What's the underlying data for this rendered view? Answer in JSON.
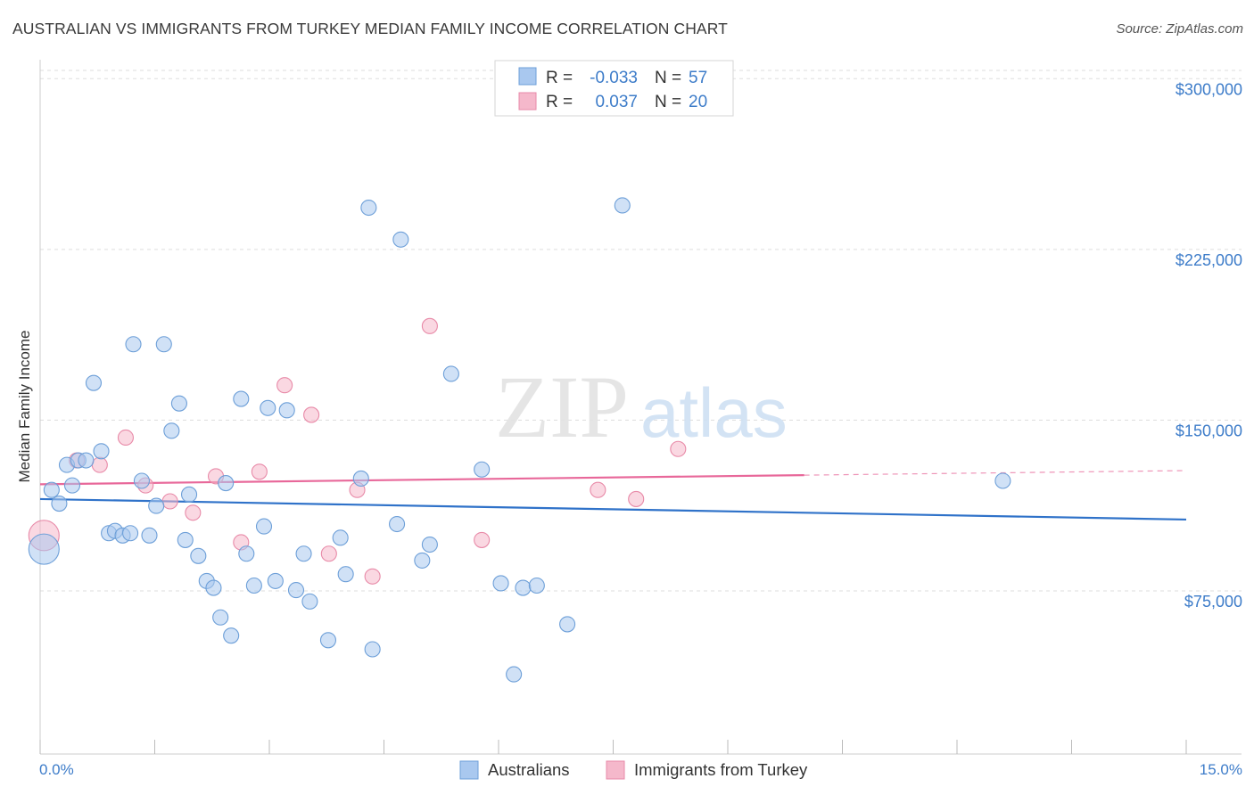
{
  "header": {
    "title": "AUSTRALIAN VS IMMIGRANTS FROM TURKEY MEDIAN FAMILY INCOME CORRELATION CHART",
    "source": "Source: ZipAtlas.com"
  },
  "watermark": {
    "zip": "ZIP",
    "atlas": "atlas"
  },
  "legend": {
    "rows": [
      {
        "r_label": "R =",
        "r_value": "-0.033",
        "n_label": "N =",
        "n_value": "57",
        "color": "#a9c8ef"
      },
      {
        "r_label": "R =",
        "r_value": "0.037",
        "n_label": "N =",
        "n_value": "20",
        "color": "#f5b8cb"
      }
    ]
  },
  "bottom_legend": [
    {
      "label": "Australians",
      "color": "#a9c8ef"
    },
    {
      "label": "Immigrants from Turkey",
      "color": "#f5b8cb"
    }
  ],
  "colors": {
    "blue_fill": "#a9c8ef",
    "blue_stroke": "#6d9fd8",
    "blue_line": "#2f72c9",
    "pink_fill": "#f5b8cb",
    "pink_stroke": "#e88aa8",
    "pink_line": "#e8689a",
    "axis_text": "#3d7cc9",
    "grid": "#dddddd"
  },
  "chart_data": {
    "type": "scatter",
    "title": "AUSTRALIAN VS IMMIGRANTS FROM TURKEY MEDIAN FAMILY INCOME CORRELATION CHART",
    "xlabel": "",
    "ylabel": "Median Family Income",
    "xlim": [
      0,
      15
    ],
    "ylim": [
      10000,
      315000
    ],
    "x_tick_labels": [
      "0.0%",
      "15.0%"
    ],
    "y_ticks": [
      {
        "value": 75000,
        "label": "$75,000"
      },
      {
        "value": 150000,
        "label": "$150,000"
      },
      {
        "value": 225000,
        "label": "$225,000"
      },
      {
        "value": 300000,
        "label": "$300,000"
      }
    ],
    "grid": true,
    "series": [
      {
        "name": "Australians",
        "R": -0.033,
        "N": 57,
        "trend": {
          "x": [
            0.0,
            15.0
          ],
          "y": [
            122000,
            113000
          ],
          "dashed_from": null
        },
        "points": [
          {
            "x": 0.05,
            "y": 100000,
            "big": true
          },
          {
            "x": 0.15,
            "y": 126000
          },
          {
            "x": 0.25,
            "y": 120000
          },
          {
            "x": 0.35,
            "y": 137000
          },
          {
            "x": 0.42,
            "y": 128000
          },
          {
            "x": 0.5,
            "y": 139000
          },
          {
            "x": 0.6,
            "y": 139000
          },
          {
            "x": 0.7,
            "y": 173000
          },
          {
            "x": 0.8,
            "y": 143000
          },
          {
            "x": 0.9,
            "y": 107000
          },
          {
            "x": 0.98,
            "y": 108000
          },
          {
            "x": 1.08,
            "y": 106000
          },
          {
            "x": 1.18,
            "y": 107000
          },
          {
            "x": 1.22,
            "y": 190000
          },
          {
            "x": 1.33,
            "y": 130000
          },
          {
            "x": 1.43,
            "y": 106000
          },
          {
            "x": 1.52,
            "y": 119000
          },
          {
            "x": 1.62,
            "y": 190000
          },
          {
            "x": 1.72,
            "y": 152000
          },
          {
            "x": 1.82,
            "y": 164000
          },
          {
            "x": 1.9,
            "y": 104000
          },
          {
            "x": 1.95,
            "y": 124000
          },
          {
            "x": 2.07,
            "y": 97000
          },
          {
            "x": 2.18,
            "y": 86000
          },
          {
            "x": 2.27,
            "y": 83000
          },
          {
            "x": 2.36,
            "y": 70000
          },
          {
            "x": 2.43,
            "y": 129000
          },
          {
            "x": 2.5,
            "y": 62000
          },
          {
            "x": 2.63,
            "y": 166000
          },
          {
            "x": 2.7,
            "y": 98000
          },
          {
            "x": 2.8,
            "y": 84000
          },
          {
            "x": 2.93,
            "y": 110000
          },
          {
            "x": 2.98,
            "y": 162000
          },
          {
            "x": 3.08,
            "y": 86000
          },
          {
            "x": 3.23,
            "y": 161000
          },
          {
            "x": 3.35,
            "y": 82000
          },
          {
            "x": 3.45,
            "y": 98000
          },
          {
            "x": 3.53,
            "y": 77000
          },
          {
            "x": 3.77,
            "y": 60000
          },
          {
            "x": 3.93,
            "y": 105000
          },
          {
            "x": 4.0,
            "y": 89000
          },
          {
            "x": 4.2,
            "y": 131000
          },
          {
            "x": 4.3,
            "y": 250000
          },
          {
            "x": 4.35,
            "y": 56000
          },
          {
            "x": 4.67,
            "y": 111000
          },
          {
            "x": 4.72,
            "y": 236000
          },
          {
            "x": 5.0,
            "y": 95000
          },
          {
            "x": 5.1,
            "y": 102000
          },
          {
            "x": 5.38,
            "y": 177000
          },
          {
            "x": 5.78,
            "y": 135000
          },
          {
            "x": 6.03,
            "y": 85000
          },
          {
            "x": 6.2,
            "y": 45000
          },
          {
            "x": 6.32,
            "y": 83000
          },
          {
            "x": 6.5,
            "y": 84000
          },
          {
            "x": 6.9,
            "y": 67000
          },
          {
            "x": 7.62,
            "y": 251000
          },
          {
            "x": 12.6,
            "y": 130000
          }
        ]
      },
      {
        "name": "Immigrants from Turkey",
        "R": 0.037,
        "N": 20,
        "trend": {
          "x": [
            0.0,
            15.0
          ],
          "y": [
            128500,
            134500
          ],
          "dashed_from": 10.0
        },
        "points": [
          {
            "x": 0.05,
            "y": 106000,
            "big": true
          },
          {
            "x": 0.48,
            "y": 139000
          },
          {
            "x": 0.78,
            "y": 137000
          },
          {
            "x": 1.12,
            "y": 149000
          },
          {
            "x": 1.38,
            "y": 128000
          },
          {
            "x": 1.7,
            "y": 121000
          },
          {
            "x": 2.0,
            "y": 116000
          },
          {
            "x": 2.3,
            "y": 132000
          },
          {
            "x": 2.63,
            "y": 103000
          },
          {
            "x": 2.87,
            "y": 134000
          },
          {
            "x": 3.2,
            "y": 172000
          },
          {
            "x": 3.55,
            "y": 159000
          },
          {
            "x": 3.78,
            "y": 98000
          },
          {
            "x": 4.15,
            "y": 126000
          },
          {
            "x": 4.35,
            "y": 88000
          },
          {
            "x": 5.1,
            "y": 198000
          },
          {
            "x": 5.78,
            "y": 104000
          },
          {
            "x": 7.3,
            "y": 126000
          },
          {
            "x": 7.8,
            "y": 122000
          },
          {
            "x": 8.35,
            "y": 144000
          }
        ]
      }
    ]
  }
}
